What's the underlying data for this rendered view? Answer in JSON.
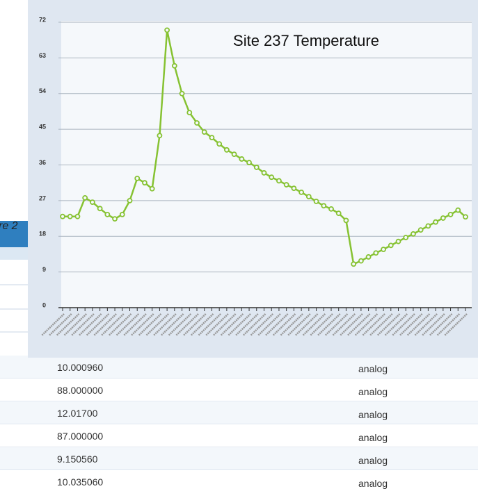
{
  "caption": "re 2",
  "chart_data": {
    "type": "line",
    "title": "Site 237 Temperature",
    "categories": [
      null,
      null,
      null,
      null,
      null,
      null,
      null,
      null,
      null,
      null,
      null,
      null,
      null,
      null,
      null,
      null,
      null,
      null,
      null,
      null,
      null,
      null,
      null,
      null,
      null,
      null,
      null,
      null,
      null,
      null,
      null,
      null,
      null,
      null,
      null,
      null,
      null,
      null,
      null,
      null,
      null,
      null,
      null,
      null,
      null,
      null,
      null,
      null,
      null,
      null,
      null,
      null,
      null,
      null,
      null
    ],
    "series": [
      {
        "name": "Site 237",
        "color": "#86c232",
        "values": [
          23,
          23,
          23,
          27.7,
          26.6,
          25,
          23.5,
          22.4,
          23.5,
          27,
          32.6,
          31.5,
          30,
          43.4,
          70,
          61,
          54,
          49.2,
          46.6,
          44.3,
          42.9,
          41.3,
          39.8,
          38.7,
          37.5,
          36.6,
          35.4,
          34,
          32.9,
          32,
          31,
          30.1,
          29.1,
          28,
          26.8,
          25.7,
          24.9,
          23.8,
          22,
          11,
          11.8,
          12.8,
          13.8,
          14.7,
          15.7,
          16.7,
          17.7,
          18.6,
          19.6,
          20.6,
          21.6,
          22.6,
          23.5,
          24.6,
          22.9
        ]
      }
    ],
    "ylim": [
      0,
      72
    ],
    "yticks": [
      0,
      9,
      18,
      27,
      36,
      45,
      54,
      63,
      72
    ],
    "grid": true
  },
  "table": {
    "rows": [
      [
        "10.000960",
        "analog"
      ],
      [
        "88.000000",
        "analog"
      ],
      [
        "12.01700",
        "analog"
      ],
      [
        "87.000000",
        "analog"
      ],
      [
        "9.150560",
        "analog"
      ],
      [
        "10.035060",
        "analog"
      ]
    ]
  }
}
